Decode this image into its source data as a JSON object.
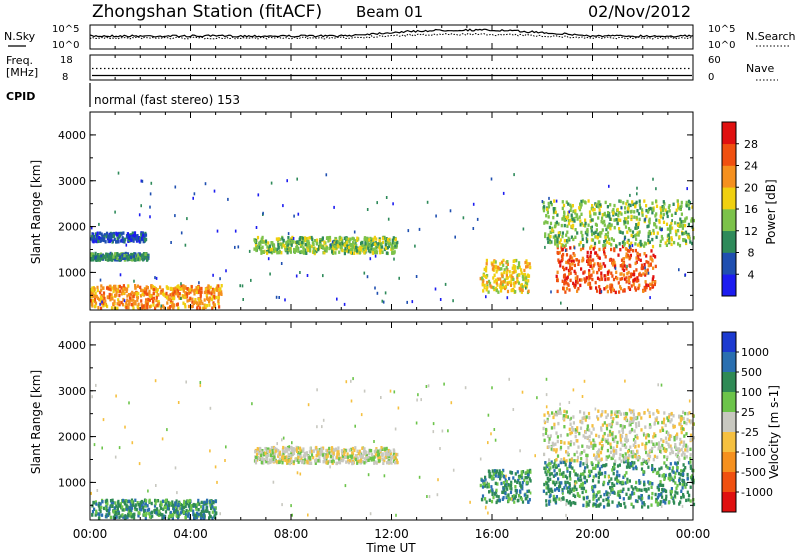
{
  "header": {
    "station": "Zhongshan Station (fitACF)",
    "beam": "Beam 01",
    "date": "02/Nov/2012"
  },
  "noise_panel": {
    "left_label": "N.Sky",
    "right_label": "N.Search",
    "left_ticks": [
      "10^5",
      "10^0"
    ],
    "right_ticks": [
      "10^5",
      "10^0"
    ]
  },
  "freq_panel": {
    "left_label_1": "Freq.",
    "left_label_2": "[MHz]",
    "right_label": "Nave",
    "left_ticks": [
      "18",
      "8"
    ],
    "right_ticks": [
      "60",
      "0"
    ]
  },
  "cpid": {
    "label": "CPID",
    "text": "normal (fast stereo)  153"
  },
  "power_panel": {
    "ylabel": "Slant Range [km]",
    "yticks": [
      "1000",
      "2000",
      "3000",
      "4000"
    ],
    "colorbar_label": "Power [dB]",
    "colorbar_ticks": [
      "4",
      "8",
      "12",
      "16",
      "20",
      "24",
      "28"
    ],
    "colors": [
      "#1c1cf0",
      "#1f4fb0",
      "#2e8a5a",
      "#7cc24a",
      "#f0d010",
      "#f5901e",
      "#f05010",
      "#e01010"
    ]
  },
  "velocity_panel": {
    "ylabel": "Slant Range [km]",
    "yticks": [
      "1000",
      "2000",
      "3000",
      "4000"
    ],
    "colorbar_label": "Velocity  [m s-1]",
    "colorbar_ticks": [
      "1000",
      "500",
      "100",
      "25",
      "-25",
      "-100",
      "-500",
      "-1000"
    ],
    "colors": [
      "#1c3ad0",
      "#2a6fb0",
      "#2f8a55",
      "#6cc44a",
      "#c8c8c0",
      "#f5c040",
      "#f5901e",
      "#f05010",
      "#e01010"
    ]
  },
  "xaxis": {
    "label": "Time UT",
    "ticks": [
      "00:00",
      "04:00",
      "08:00",
      "12:00",
      "16:00",
      "20:00",
      "00:00"
    ]
  },
  "chart_data": {
    "type": "heatmap",
    "x_unit": "hours UT",
    "xlim": [
      0,
      24
    ],
    "ylim": [
      180,
      4500
    ],
    "power_features": [
      {
        "t0": 0.0,
        "t1": 5.2,
        "r0": 250,
        "r1": 750,
        "level": 5
      },
      {
        "t0": 0.0,
        "t1": 2.3,
        "r0": 1300,
        "r1": 1450,
        "level": 2
      },
      {
        "t0": 0.0,
        "t1": 2.2,
        "r0": 1700,
        "r1": 1900,
        "level": 1
      },
      {
        "t0": 6.5,
        "t1": 12.2,
        "r0": 1450,
        "r1": 1800,
        "level": 3
      },
      {
        "t0": 15.5,
        "t1": 17.5,
        "r0": 600,
        "r1": 1300,
        "level": 4
      },
      {
        "t0": 18.5,
        "t1": 22.5,
        "r0": 600,
        "r1": 1600,
        "level": 6
      },
      {
        "t0": 18.0,
        "t1": 24.0,
        "r0": 1600,
        "r1": 2600,
        "level": 3
      }
    ],
    "velocity_features": [
      {
        "t0": 0.0,
        "t1": 5.0,
        "r0": 250,
        "r1": 650,
        "class": 2
      },
      {
        "t0": 6.5,
        "t1": 12.2,
        "r0": 1450,
        "r1": 1800,
        "class": 4
      },
      {
        "t0": 15.5,
        "t1": 17.5,
        "r0": 600,
        "r1": 1300,
        "class": 2
      },
      {
        "t0": 18.0,
        "t1": 24.0,
        "r0": 500,
        "r1": 1500,
        "class": 2
      },
      {
        "t0": 18.0,
        "t1": 24.0,
        "r0": 1500,
        "r1": 2600,
        "class": 4
      }
    ]
  }
}
